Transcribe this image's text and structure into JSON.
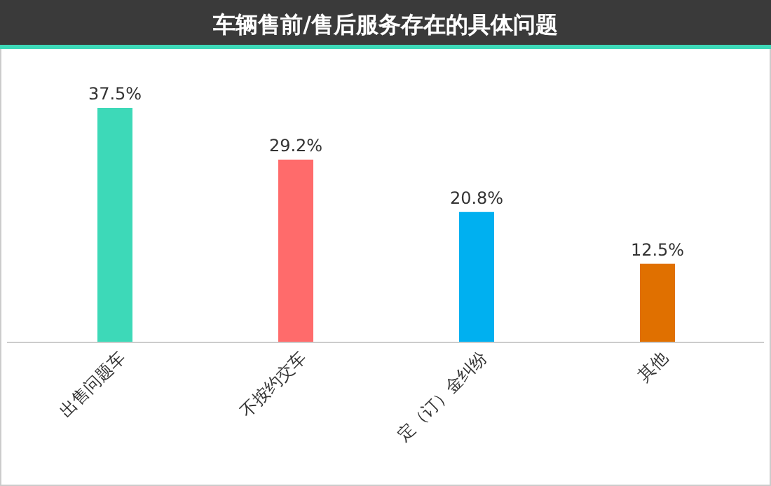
{
  "chart_data": {
    "type": "bar",
    "title": "车辆售前/售后服务存在的具体问题",
    "categories": [
      "出售问题车",
      "不按约交车",
      "定（订）金纠纷",
      "其他"
    ],
    "values": [
      37.5,
      29.2,
      20.8,
      12.5
    ],
    "value_labels": [
      "37.5%",
      "29.2%",
      "20.8%",
      "12.5%"
    ],
    "colors": [
      "#3dd9b8",
      "#ff6b6b",
      "#00b0f0",
      "#e07000"
    ]
  }
}
